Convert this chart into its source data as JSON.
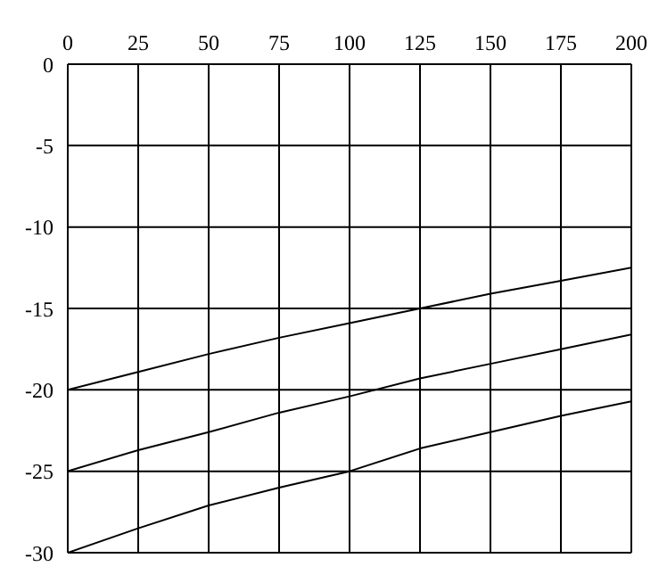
{
  "chart_data": {
    "type": "line",
    "x": [
      0,
      25,
      50,
      75,
      100,
      125,
      150,
      175,
      200
    ],
    "series": [
      {
        "color": "#000000",
        "values": [
          -20,
          -18.9,
          -17.8,
          -16.8,
          -15.9,
          -15.0,
          -14.1,
          -13.3,
          -12.5
        ]
      },
      {
        "color": "#000000",
        "values": [
          -25,
          -23.7,
          -22.6,
          -21.4,
          -20.4,
          -19.3,
          -18.4,
          -17.5,
          -16.6
        ]
      },
      {
        "color": "#000000",
        "values": [
          -30,
          -28.5,
          -27.1,
          -26.0,
          -25.0,
          -23.6,
          -22.6,
          -21.6,
          -20.7
        ]
      }
    ],
    "xlim": [
      0,
      200
    ],
    "xticks": [
      0,
      25,
      50,
      75,
      100,
      125,
      150,
      175,
      200
    ],
    "ylim": [
      -30,
      0
    ],
    "yticks": [
      -30,
      -25,
      -20,
      -15,
      -10,
      -5,
      0
    ],
    "grid": true
  }
}
